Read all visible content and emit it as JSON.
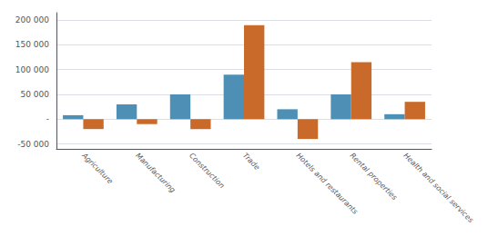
{
  "chart_data": {
    "type": "bar",
    "categories": [
      "Agriculture",
      "Manufacturing",
      "Construction",
      "Trade",
      "Hotels and restaurants",
      "Rental properties",
      "Health and social services"
    ],
    "series": [
      {
        "color": "#4e8fb5",
        "values": [
          8000,
          30000,
          50000,
          90000,
          20000,
          50000,
          10000
        ]
      },
      {
        "color": "#c96a2a",
        "values": [
          -20000,
          -10000,
          -20000,
          190000,
          -40000,
          115000,
          35000
        ]
      }
    ],
    "ylim": [
      -60000,
      215000
    ],
    "yticks": [
      {
        "value": -50000,
        "label": "-50 000"
      },
      {
        "value": 0,
        "label": "-"
      },
      {
        "value": 50000,
        "label": "50 000"
      },
      {
        "value": 100000,
        "label": "100 000"
      },
      {
        "value": 150000,
        "label": "150 000"
      },
      {
        "value": 200000,
        "label": "200 000"
      }
    ],
    "grid": true
  }
}
